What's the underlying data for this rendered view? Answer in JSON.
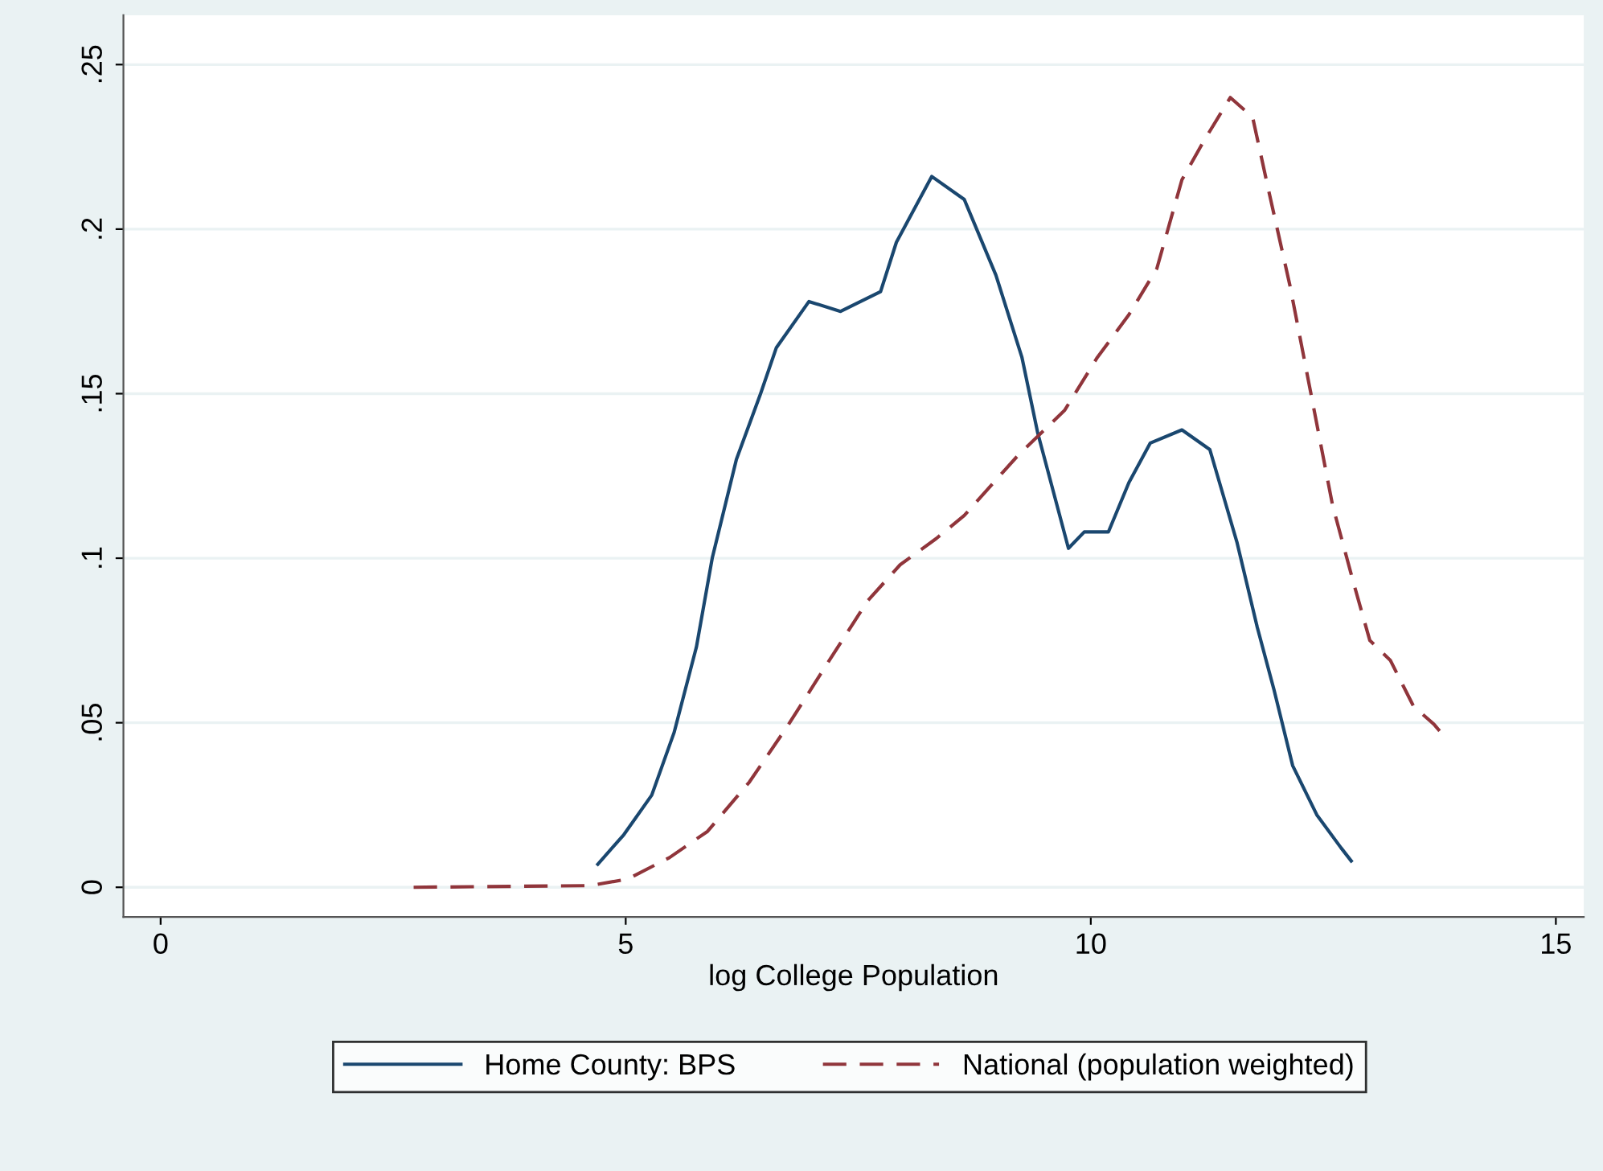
{
  "chart_data": {
    "type": "line",
    "xlabel": "log College Population",
    "xlim": [
      -0.4,
      15.3
    ],
    "ylim": [
      -0.009,
      0.265
    ],
    "xticks": [
      0,
      5,
      10,
      15
    ],
    "yticks": [
      {
        "value": 0,
        "label": "0"
      },
      {
        "value": 0.05,
        "label": ".05"
      },
      {
        "value": 0.1,
        "label": ".1"
      },
      {
        "value": 0.15,
        "label": ".15"
      },
      {
        "value": 0.2,
        "label": ".2"
      },
      {
        "value": 0.25,
        "label": ".25"
      }
    ],
    "grid": "y",
    "legend": "bottom",
    "series": [
      {
        "name": "Home County: BPS",
        "color": "#1a476f",
        "line_style": "solid",
        "x": [
          4.7,
          4.98,
          5.28,
          5.52,
          5.76,
          5.93,
          6.19,
          6.45,
          6.62,
          6.97,
          7.31,
          7.74,
          7.91,
          8.29,
          8.64,
          8.98,
          9.26,
          9.43,
          9.76,
          9.93,
          10.19,
          10.41,
          10.64,
          10.98,
          11.28,
          11.57,
          11.79,
          11.97,
          12.17,
          12.43,
          12.69,
          12.8
        ],
        "values": [
          0.007,
          0.016,
          0.028,
          0.047,
          0.073,
          0.1,
          0.13,
          0.15,
          0.164,
          0.178,
          0.175,
          0.181,
          0.196,
          0.216,
          0.209,
          0.186,
          0.161,
          0.138,
          0.103,
          0.108,
          0.108,
          0.123,
          0.135,
          0.139,
          0.133,
          0.105,
          0.079,
          0.06,
          0.037,
          0.022,
          0.012,
          0.008
        ]
      },
      {
        "name": "National (population weighted)",
        "color": "#90353b",
        "line_style": "dashed",
        "x": [
          2.72,
          4.62,
          5.02,
          5.47,
          5.88,
          6.33,
          6.74,
          7.19,
          7.6,
          7.95,
          8.34,
          8.64,
          9.21,
          9.72,
          10.07,
          10.41,
          10.71,
          10.98,
          11.22,
          11.5,
          11.74,
          11.91,
          12.14,
          12.36,
          12.6,
          12.83,
          13.0,
          13.22,
          13.47,
          13.69,
          13.78
        ],
        "values": [
          0.0,
          0.0005,
          0.0025,
          0.009,
          0.017,
          0.032,
          0.049,
          0.069,
          0.087,
          0.098,
          0.106,
          0.113,
          0.131,
          0.145,
          0.161,
          0.174,
          0.188,
          0.215,
          0.227,
          0.24,
          0.234,
          0.212,
          0.183,
          0.151,
          0.116,
          0.092,
          0.075,
          0.069,
          0.055,
          0.0495,
          0.0465
        ]
      }
    ]
  }
}
